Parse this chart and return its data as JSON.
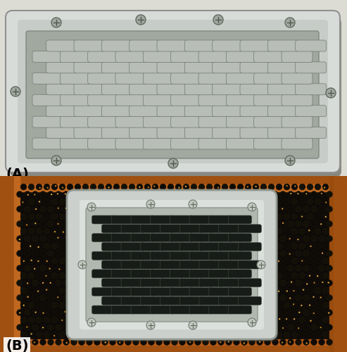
{
  "figure_width": 4.93,
  "figure_height": 5.0,
  "dpi": 100,
  "panel_A_label": "(A)",
  "panel_B_label": "(B)",
  "label_fontsize": 14,
  "label_fontweight": "bold",
  "background_color": "#ffffff",
  "panel_A_bg": "#d8d8d0",
  "panel_B_bg": "#0d0a06",
  "frame_wood_color": "#a05510",
  "cage_A_frame_color": "#c0c8c0",
  "cage_A_grid_color": "#909898",
  "slot_A_color": "#a8b0a8",
  "slot_B_color": "#0a0808",
  "cage_B_frame_color": "#d0d8d0",
  "cage_B_grid_color": "#b8c0b8",
  "honeycomb_bg": "#080604",
  "honeycomb_dot": "#c09030",
  "screw_color": "#808880",
  "border_color": "#404040"
}
